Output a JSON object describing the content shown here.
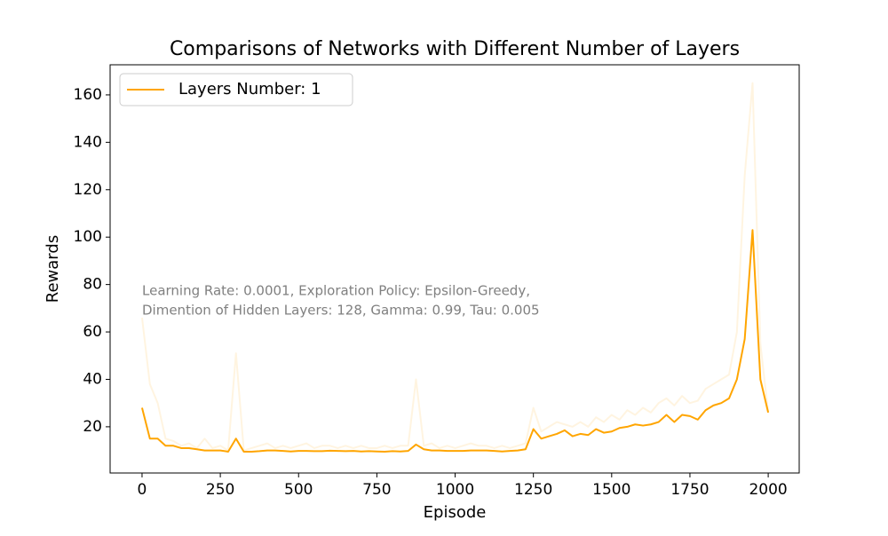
{
  "chart_data": {
    "type": "line",
    "title": "Comparisons of Networks with Different Number of Layers",
    "xlabel": "Episode",
    "ylabel": "Rewards",
    "annotation": [
      "Learning Rate: 0.0001, Exploration Policy: Epsilon-Greedy,",
      "Dimention of Hidden Layers: 128, Gamma: 0.99, Tau: 0.005"
    ],
    "x": [
      0,
      25,
      50,
      75,
      100,
      125,
      150,
      175,
      200,
      225,
      250,
      275,
      300,
      325,
      350,
      375,
      400,
      425,
      450,
      475,
      500,
      525,
      550,
      575,
      600,
      625,
      650,
      675,
      700,
      725,
      750,
      775,
      800,
      825,
      850,
      875,
      900,
      925,
      950,
      975,
      1000,
      1025,
      1050,
      1075,
      1100,
      1125,
      1150,
      1175,
      1200,
      1225,
      1250,
      1275,
      1300,
      1325,
      1350,
      1375,
      1400,
      1425,
      1450,
      1475,
      1500,
      1525,
      1550,
      1575,
      1600,
      1625,
      1650,
      1675,
      1700,
      1725,
      1750,
      1775,
      1800,
      1825,
      1850,
      1875,
      1900,
      1925,
      1950,
      1975,
      2000
    ],
    "series": [
      {
        "color": "#ffa500",
        "opacity": 0.12,
        "values": [
          66,
          38,
          30,
          15,
          14,
          12,
          13,
          11,
          15,
          11,
          12,
          10,
          51,
          10,
          11,
          12,
          13,
          11,
          12,
          11,
          12,
          13,
          11,
          12,
          12,
          11,
          12,
          11,
          12,
          11,
          11,
          12,
          11,
          12,
          12,
          40,
          12,
          13,
          11,
          12,
          11,
          12,
          13,
          12,
          12,
          11,
          12,
          11,
          12,
          13,
          28,
          18,
          20,
          22,
          21,
          20,
          22,
          20,
          24,
          22,
          25,
          23,
          27,
          25,
          28,
          26,
          30,
          32,
          29,
          33,
          30,
          31,
          36,
          38,
          40,
          42,
          60,
          126,
          165,
          55,
          26
        ]
      },
      {
        "name": "Layers Number: 1",
        "color": "#ffa500",
        "opacity": 1,
        "values": [
          28,
          15,
          15,
          12,
          12,
          11,
          11,
          10.5,
          10,
          10,
          10,
          9.5,
          15,
          9.5,
          9.5,
          9.7,
          10,
          10,
          9.8,
          9.6,
          9.8,
          9.8,
          9.7,
          9.7,
          9.9,
          9.8,
          9.7,
          9.8,
          9.6,
          9.7,
          9.6,
          9.5,
          9.7,
          9.6,
          9.8,
          12.5,
          10.5,
          10,
          10,
          9.8,
          9.8,
          9.8,
          10,
          10,
          10,
          9.8,
          9.6,
          9.8,
          10,
          10.5,
          19,
          15,
          16,
          17,
          18.5,
          16,
          17,
          16.5,
          19,
          17.5,
          18,
          19.5,
          20,
          21,
          20.5,
          21,
          22,
          25,
          22,
          25,
          24.5,
          23,
          27,
          29,
          30,
          32,
          40,
          57,
          103,
          40,
          26
        ]
      }
    ],
    "xlim": [
      -102,
      2099
    ],
    "ylim": [
      0.5,
      172.7
    ],
    "xticks": [
      0,
      250,
      500,
      750,
      1000,
      1250,
      1500,
      1750,
      2000
    ],
    "yticks": [
      20,
      40,
      60,
      80,
      100,
      120,
      140,
      160
    ],
    "legend": "upper left"
  }
}
